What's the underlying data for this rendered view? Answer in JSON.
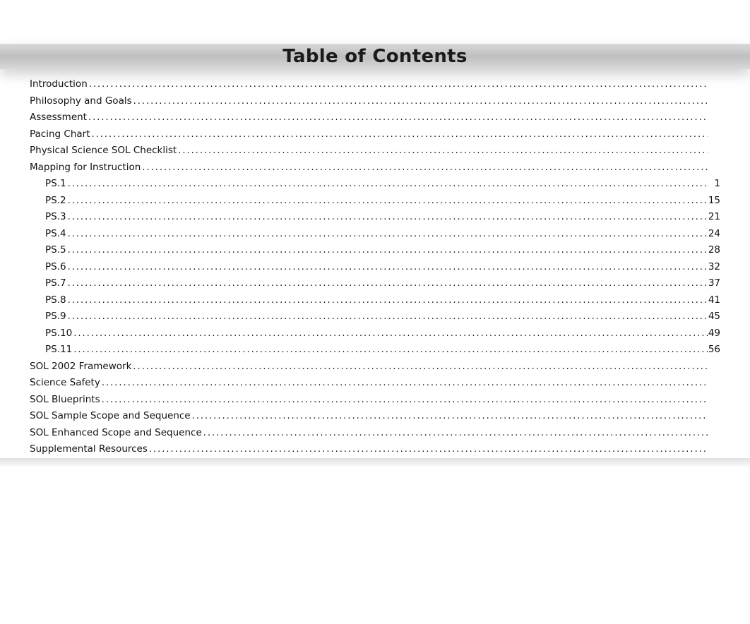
{
  "title": "Table of Contents",
  "title_fontsize": 26,
  "colors": {
    "page_bg": "#ffffff",
    "bar_gradient_top": "#d9d9d9",
    "bar_gradient_mid": "#bfbfbf",
    "bar_gradient_bottom": "#d9d9d9",
    "text": "#111111"
  },
  "entries": [
    {
      "label": "Introduction",
      "page": "",
      "indent": 0
    },
    {
      "label": "Philosophy and Goals",
      "page": "",
      "indent": 0
    },
    {
      "label": "Assessment",
      "page": "",
      "indent": 0
    },
    {
      "label": "Pacing Chart",
      "page": "",
      "indent": 0
    },
    {
      "label": "Physical Science SOL Checklist",
      "page": "",
      "indent": 0
    },
    {
      "label": "Mapping for Instruction",
      "page": "",
      "indent": 0
    },
    {
      "label": "PS.1",
      "page": "1",
      "indent": 1
    },
    {
      "label": "PS.2",
      "page": "15",
      "indent": 1
    },
    {
      "label": "PS.3",
      "page": "21",
      "indent": 1
    },
    {
      "label": "PS.4",
      "page": "24",
      "indent": 1
    },
    {
      "label": "PS.5",
      "page": "28",
      "indent": 1
    },
    {
      "label": "PS.6",
      "page": "32",
      "indent": 1
    },
    {
      "label": "PS.7",
      "page": "37",
      "indent": 1
    },
    {
      "label": "PS.8",
      "page": "41",
      "indent": 1
    },
    {
      "label": "PS.9",
      "page": "45",
      "indent": 1
    },
    {
      "label": "PS.10",
      "page": "49",
      "indent": 1
    },
    {
      "label": "PS.11",
      "page": "56",
      "indent": 1
    },
    {
      "label": "SOL 2002 Framework",
      "page": "",
      "indent": 0
    },
    {
      "label": "Science Safety",
      "page": "",
      "indent": 0
    },
    {
      "label": "SOL Blueprints",
      "page": "",
      "indent": 0
    },
    {
      "label": "SOL Sample Scope and Sequence",
      "page": "",
      "indent": 0
    },
    {
      "label": "SOL Enhanced Scope and Sequence",
      "page": "",
      "indent": 0
    },
    {
      "label": "Supplemental Resources",
      "page": "",
      "indent": 0
    }
  ]
}
